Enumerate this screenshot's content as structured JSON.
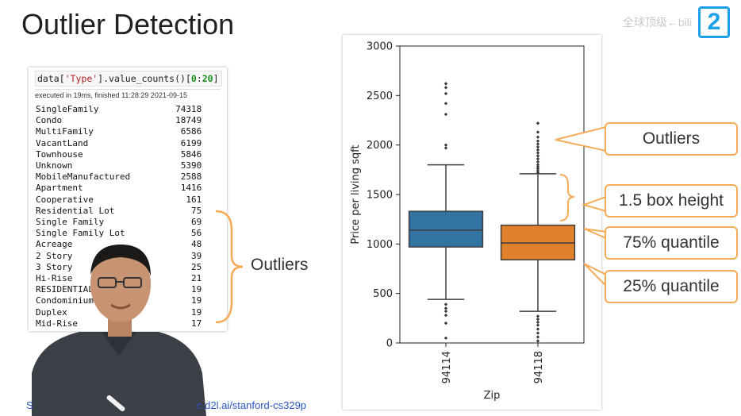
{
  "slide": {
    "title": "Outlier Detection",
    "watermark_text": "全球顶级←bili",
    "watermark_logo": "2",
    "brace_label": "Outliers"
  },
  "notebook": {
    "code_prefix": "data[",
    "code_str": "'Type'",
    "code_mid": "].value_counts()[",
    "code_num1": "0",
    "code_colon": ":",
    "code_num2": "20",
    "code_suffix": "]",
    "exec_info": "executed in 19ms, finished 11:28:29 2021-09-15",
    "rows": [
      {
        "type": "SingleFamily",
        "count": "74318"
      },
      {
        "type": "Condo",
        "count": "18749"
      },
      {
        "type": "MultiFamily",
        "count": "6586"
      },
      {
        "type": "VacantLand",
        "count": "6199"
      },
      {
        "type": "Townhouse",
        "count": "5846"
      },
      {
        "type": "Unknown",
        "count": "5390"
      },
      {
        "type": "MobileManufactured",
        "count": "2588"
      },
      {
        "type": "Apartment",
        "count": "1416"
      },
      {
        "type": "Cooperative",
        "count": "161"
      },
      {
        "type": "Residential Lot",
        "count": "75"
      },
      {
        "type": "Single Family",
        "count": "69"
      },
      {
        "type": "Single Family Lot",
        "count": "56"
      },
      {
        "type": "Acreage",
        "count": "48"
      },
      {
        "type": "2 Story",
        "count": "39"
      },
      {
        "type": "3 Story",
        "count": "25"
      },
      {
        "type": "Hi-Rise",
        "count": "21"
      },
      {
        "type": "RESIDENTIAL",
        "count": "19"
      },
      {
        "type": "Condominium",
        "count": "19"
      },
      {
        "type": "Duplex",
        "count": "19"
      },
      {
        "type": "Mid-Rise",
        "count": "17"
      }
    ]
  },
  "callouts": {
    "outliers": "Outliers",
    "box_height": "1.5 box height",
    "q75": "75% quantile",
    "q25": "25% quantile",
    "color": "#f5ab58"
  },
  "footer": {
    "link_left": "S",
    "link_right": "c.d2l.ai/stanford-cs329p"
  },
  "chart_data": {
    "type": "boxplot",
    "xlabel": "Zip",
    "ylabel": "Price per living sqft",
    "ylim": [
      0,
      3000
    ],
    "yticks": [
      "0",
      "500",
      "1000",
      "1500",
      "2000",
      "2500",
      "3000"
    ],
    "boxes": [
      {
        "category": "94114",
        "q1": 970,
        "median": 1140,
        "q3": 1330,
        "whisker_low": 440,
        "whisker_high": 1800,
        "outliers": [
          2620,
          2580,
          2520,
          2420,
          2310,
          2000,
          1970,
          390,
          350,
          320,
          280,
          200,
          50
        ],
        "color": "#3274a1"
      },
      {
        "category": "94118",
        "q1": 840,
        "median": 1010,
        "q3": 1190,
        "whisker_low": 320,
        "whisker_high": 1710,
        "outliers": [
          2220,
          2130,
          2080,
          2040,
          2010,
          1980,
          1950,
          1920,
          1890,
          1860,
          1830,
          1800,
          1780,
          1760,
          1740,
          1720,
          270,
          240,
          210,
          180,
          140,
          100,
          60,
          20
        ],
        "color": "#e1812c"
      }
    ]
  }
}
